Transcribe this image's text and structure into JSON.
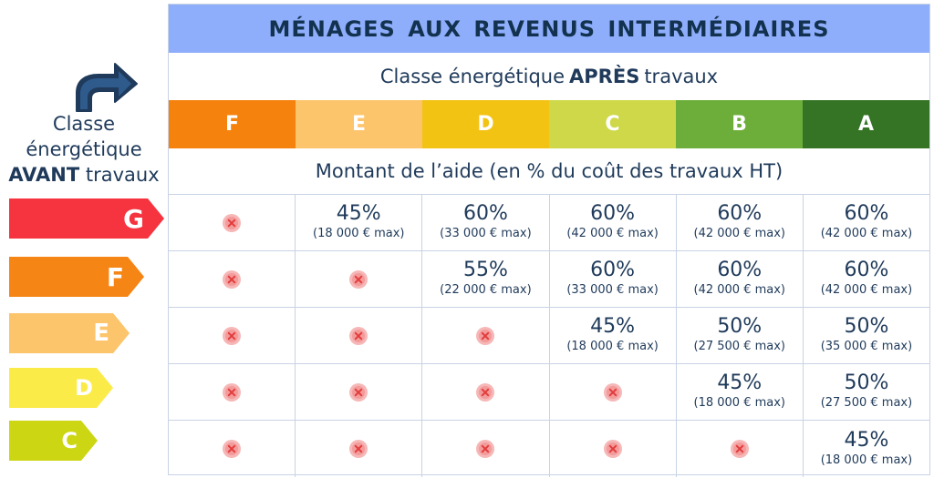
{
  "title": "MÉNAGES AUX REVENUS INTERMÉDIAIRES",
  "apres": {
    "prefix": "Classe énergétique",
    "bold": "APRÈS",
    "suffix": "travaux"
  },
  "avant": {
    "line1": "Classe",
    "line2": "énergétique",
    "bold": "AVANT",
    "suffix": "travaux"
  },
  "montant": "Montant de l’aide (en % du coût des travaux HT)",
  "after_classes": [
    {
      "label": "F",
      "color": "#f5820c"
    },
    {
      "label": "E",
      "color": "#fcc46b"
    },
    {
      "label": "D",
      "color": "#f3c314"
    },
    {
      "label": "C",
      "color": "#ced849"
    },
    {
      "label": "B",
      "color": "#6dae3a"
    },
    {
      "label": "A",
      "color": "#357424"
    }
  ],
  "before_classes": [
    {
      "label": "G",
      "color": "#f6343f"
    },
    {
      "label": "F",
      "color": "#f58514"
    },
    {
      "label": "E",
      "color": "#fcc46b"
    },
    {
      "label": "D",
      "color": "#fbeb49"
    },
    {
      "label": "C",
      "color": "#ccd612"
    }
  ],
  "rows": [
    [
      null,
      {
        "pct": "45%",
        "max": "(18 000 € max)"
      },
      {
        "pct": "60%",
        "max": "(33 000 € max)"
      },
      {
        "pct": "60%",
        "max": "(42 000 € max)"
      },
      {
        "pct": "60%",
        "max": "(42 000 € max)"
      },
      {
        "pct": "60%",
        "max": "(42 000 € max)"
      }
    ],
    [
      null,
      null,
      {
        "pct": "55%",
        "max": "(22 000 € max)"
      },
      {
        "pct": "60%",
        "max": "(33 000 € max)"
      },
      {
        "pct": "60%",
        "max": "(42 000 € max)"
      },
      {
        "pct": "60%",
        "max": "(42 000 € max)"
      }
    ],
    [
      null,
      null,
      null,
      {
        "pct": "45%",
        "max": "(18 000 € max)"
      },
      {
        "pct": "50%",
        "max": "(27 500 € max)"
      },
      {
        "pct": "50%",
        "max": "(35 000 € max)"
      }
    ],
    [
      null,
      null,
      null,
      null,
      {
        "pct": "45%",
        "max": "(18 000 € max)"
      },
      {
        "pct": "50%",
        "max": "(27 500 € max)"
      }
    ],
    [
      null,
      null,
      null,
      null,
      null,
      {
        "pct": "45%",
        "max": "(18 000 € max)"
      }
    ]
  ],
  "icons": {
    "arrow": "curved-arrow-right-icon",
    "not_eligible": "cross-circle-icon"
  }
}
